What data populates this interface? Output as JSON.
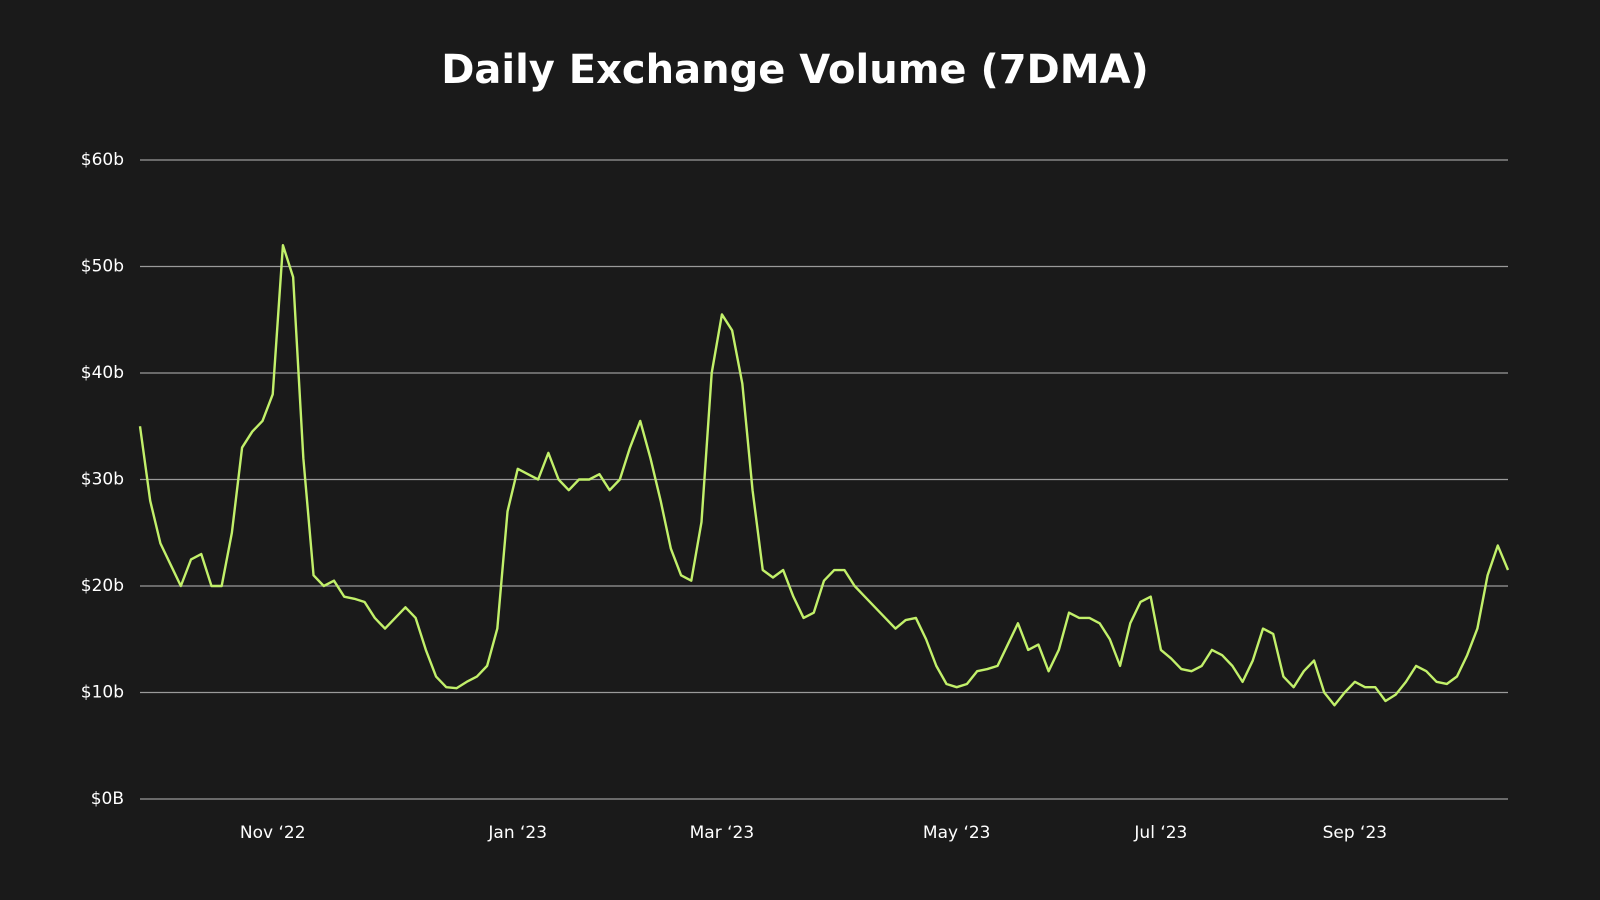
{
  "chart_data": {
    "type": "line",
    "title": "Daily Exchange Volume (7DMA)",
    "categories": [
      null,
      null,
      null,
      null,
      null,
      null,
      null,
      null,
      null,
      null,
      null,
      null,
      null,
      "Nov ‘22",
      null,
      null,
      null,
      null,
      null,
      null,
      null,
      null,
      null,
      null,
      null,
      null,
      null,
      null,
      null,
      null,
      null,
      null,
      null,
      null,
      null,
      null,
      null,
      "Jan ‘23",
      null,
      null,
      null,
      null,
      null,
      null,
      null,
      null,
      null,
      null,
      null,
      null,
      null,
      null,
      null,
      null,
      null,
      null,
      null,
      "Mar ‘23",
      null,
      null,
      null,
      null,
      null,
      null,
      null,
      null,
      null,
      null,
      null,
      null,
      null,
      null,
      null,
      null,
      null,
      null,
      null,
      null,
      null,
      null,
      "May ‘23",
      null,
      null,
      null,
      null,
      null,
      null,
      null,
      null,
      null,
      null,
      null,
      null,
      null,
      null,
      null,
      null,
      null,
      null,
      null,
      "Jul ‘23",
      null,
      null,
      null,
      null,
      null,
      null,
      null,
      null,
      null,
      null,
      null,
      null,
      null,
      null,
      null,
      null,
      null,
      null,
      "Sep ‘23",
      null,
      null,
      null,
      null,
      null,
      null,
      null,
      null,
      null,
      null,
      null,
      null,
      null,
      null,
      null
    ],
    "series": [
      {
        "color": "#c2f06a",
        "values": [
          35,
          28,
          24,
          22,
          20,
          22.5,
          23,
          20,
          20,
          25,
          33,
          34.5,
          35.5,
          38,
          52,
          49,
          32,
          21,
          20,
          20.5,
          19,
          18.8,
          18.5,
          17,
          16,
          17,
          18,
          17,
          14,
          11.5,
          10.5,
          10.4,
          11,
          11.5,
          12.5,
          16,
          27,
          31,
          30.5,
          30,
          32.5,
          30,
          29,
          30,
          30,
          30.5,
          29,
          30,
          33,
          35.5,
          32,
          28,
          23.5,
          21,
          20.5,
          26,
          40,
          45.5,
          44,
          39,
          29,
          21.5,
          20.8,
          21.5,
          19,
          17,
          17.5,
          20.5,
          21.5,
          21.5,
          20,
          19,
          18,
          17,
          16,
          16.8,
          17,
          15,
          12.5,
          10.8,
          10.5,
          10.8,
          12,
          12.2,
          12.5,
          14.5,
          16.5,
          14,
          14.5,
          12,
          14,
          17.5,
          17,
          17,
          16.5,
          15,
          12.5,
          16.5,
          18.5,
          19,
          14,
          13.2,
          12.2,
          12,
          12.5,
          14,
          13.5,
          12.5,
          11,
          13,
          16,
          15.5,
          11.5,
          10.5,
          12,
          13,
          10,
          8.8,
          10,
          11,
          10.5,
          10.5,
          9.2,
          9.8,
          11,
          12.5,
          12,
          11,
          10.8,
          11.5,
          13.5,
          16,
          21,
          23.8,
          21.5
        ]
      }
    ],
    "ylim": [
      0,
      60
    ],
    "yticks": [
      {
        "value": 0,
        "label": "$0B"
      },
      {
        "value": 10,
        "label": "$10b"
      },
      {
        "value": 20,
        "label": "$20b"
      },
      {
        "value": 30,
        "label": "$30b"
      },
      {
        "value": 40,
        "label": "$40b"
      },
      {
        "value": 50,
        "label": "$50b"
      },
      {
        "value": 60,
        "label": "$60b"
      }
    ],
    "grid": true
  }
}
